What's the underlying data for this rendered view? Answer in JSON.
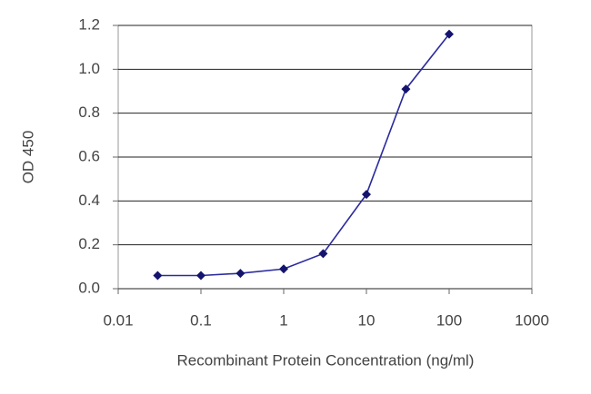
{
  "chart_data": {
    "type": "line",
    "xlabel": "Recombinant Protein Concentration (ng/ml)",
    "ylabel": "OD 450",
    "x": [
      0.03,
      0.1,
      0.3,
      1,
      3,
      10,
      30,
      100
    ],
    "series": [
      {
        "color": "#2b2b9e",
        "values": [
          0.06,
          0.06,
          0.07,
          0.09,
          0.16,
          0.43,
          0.91,
          1.16
        ]
      }
    ],
    "xscale": "log",
    "xlim": [
      0.01,
      1000
    ],
    "xticks": [
      0.01,
      0.1,
      1,
      10,
      100,
      1000
    ],
    "ylim": [
      0,
      1.2
    ],
    "yticks": [
      {
        "value": 0,
        "label": "0.0"
      },
      0.2,
      0.4,
      0.6,
      0.8,
      {
        "value": 1,
        "label": "1.0"
      },
      1.2
    ],
    "grid": true
  }
}
